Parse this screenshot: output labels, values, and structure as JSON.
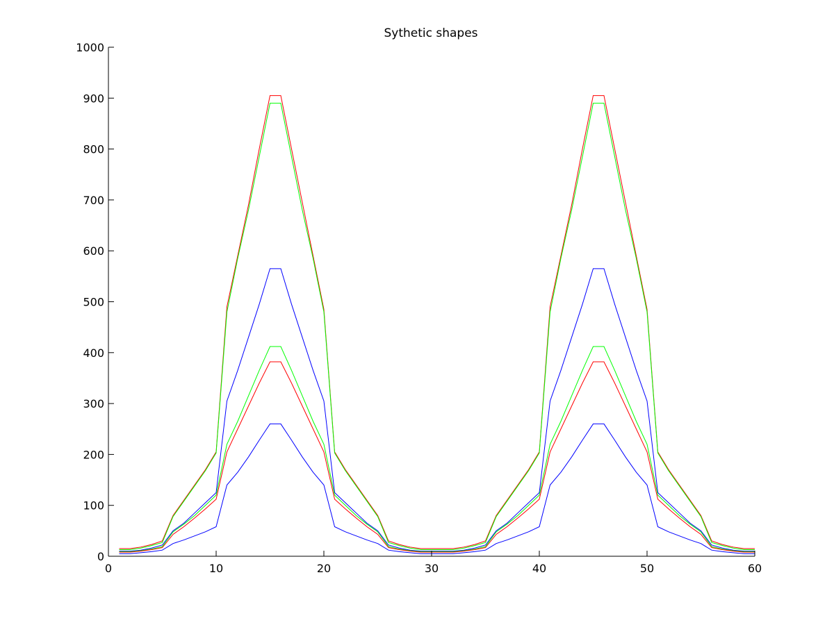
{
  "chart_data": {
    "type": "line",
    "title": "Sythetic shapes",
    "xlabel": "",
    "ylabel": "",
    "xlim": [
      0,
      60
    ],
    "ylim": [
      0,
      1000
    ],
    "xticks": [
      0,
      10,
      20,
      30,
      40,
      50,
      60
    ],
    "yticks": [
      0,
      100,
      200,
      300,
      400,
      500,
      600,
      700,
      800,
      900,
      1000
    ],
    "grid": false,
    "legend": "none",
    "x": [
      1,
      2,
      3,
      4,
      5,
      6,
      7,
      8,
      9,
      10,
      11,
      12,
      13,
      14,
      15,
      16,
      17,
      18,
      19,
      20,
      21,
      22,
      23,
      24,
      25,
      26,
      27,
      28,
      29,
      30,
      31,
      32,
      33,
      34,
      35,
      36,
      37,
      38,
      39,
      40,
      41,
      42,
      43,
      44,
      45,
      46,
      47,
      48,
      49,
      50,
      51,
      52,
      53,
      54,
      55,
      56,
      57,
      58,
      59,
      60
    ],
    "series": [
      {
        "color": "#ff0000",
        "values": [
          15,
          15,
          18,
          23,
          30,
          80,
          110,
          140,
          170,
          205,
          490,
          590,
          690,
          800,
          905,
          905,
          800,
          695,
          590,
          485,
          205,
          170,
          140,
          110,
          80,
          30,
          23,
          18,
          15,
          15,
          15,
          15,
          18,
          23,
          30,
          80,
          110,
          140,
          170,
          205,
          490,
          590,
          690,
          800,
          905,
          905,
          800,
          695,
          590,
          485,
          205,
          170,
          140,
          110,
          80,
          30,
          23,
          18,
          15,
          15
        ]
      },
      {
        "color": "#00ff00",
        "values": [
          13,
          13,
          16,
          21,
          27,
          78,
          108,
          138,
          168,
          203,
          480,
          585,
          680,
          785,
          890,
          890,
          785,
          680,
          585,
          480,
          203,
          168,
          138,
          108,
          78,
          27,
          21,
          16,
          13,
          13,
          13,
          13,
          16,
          21,
          27,
          78,
          108,
          138,
          168,
          203,
          480,
          585,
          680,
          785,
          890,
          890,
          785,
          680,
          585,
          480,
          203,
          168,
          138,
          108,
          78,
          27,
          21,
          16,
          13,
          13
        ]
      },
      {
        "color": "#0000ff",
        "values": [
          10,
          10,
          12,
          16,
          22,
          50,
          65,
          85,
          105,
          125,
          305,
          365,
          430,
          495,
          565,
          565,
          495,
          430,
          365,
          305,
          125,
          105,
          85,
          65,
          50,
          22,
          16,
          12,
          10,
          10,
          10,
          10,
          12,
          16,
          22,
          50,
          65,
          85,
          105,
          125,
          305,
          365,
          430,
          495,
          565,
          565,
          495,
          430,
          365,
          305,
          125,
          105,
          85,
          65,
          50,
          22,
          16,
          12,
          10,
          10
        ]
      },
      {
        "color": "#00ff00",
        "values": [
          9,
          9,
          11,
          14,
          19,
          48,
          63,
          80,
          100,
          120,
          220,
          265,
          315,
          365,
          412,
          412,
          365,
          315,
          265,
          220,
          120,
          100,
          80,
          63,
          48,
          19,
          14,
          11,
          9,
          9,
          9,
          9,
          11,
          14,
          19,
          48,
          63,
          80,
          100,
          120,
          220,
          265,
          315,
          365,
          412,
          412,
          365,
          315,
          265,
          220,
          120,
          100,
          80,
          63,
          48,
          19,
          14,
          11,
          9,
          9
        ]
      },
      {
        "color": "#ff0000",
        "values": [
          8,
          8,
          10,
          13,
          17,
          43,
          58,
          75,
          93,
          112,
          205,
          250,
          295,
          340,
          382,
          382,
          340,
          295,
          250,
          205,
          112,
          93,
          75,
          58,
          43,
          17,
          13,
          10,
          8,
          8,
          8,
          8,
          10,
          13,
          17,
          43,
          58,
          75,
          93,
          112,
          205,
          250,
          295,
          340,
          382,
          382,
          340,
          295,
          250,
          205,
          112,
          93,
          75,
          58,
          43,
          17,
          13,
          10,
          8,
          8
        ]
      },
      {
        "color": "#0000ff",
        "values": [
          5,
          5,
          7,
          9,
          12,
          25,
          32,
          40,
          48,
          58,
          140,
          165,
          195,
          228,
          260,
          260,
          228,
          195,
          165,
          140,
          58,
          48,
          40,
          32,
          25,
          12,
          9,
          7,
          5,
          5,
          5,
          5,
          7,
          9,
          12,
          25,
          32,
          40,
          48,
          58,
          140,
          165,
          195,
          228,
          260,
          260,
          228,
          195,
          165,
          140,
          58,
          48,
          40,
          32,
          25,
          12,
          9,
          7,
          5,
          5
        ]
      }
    ]
  }
}
